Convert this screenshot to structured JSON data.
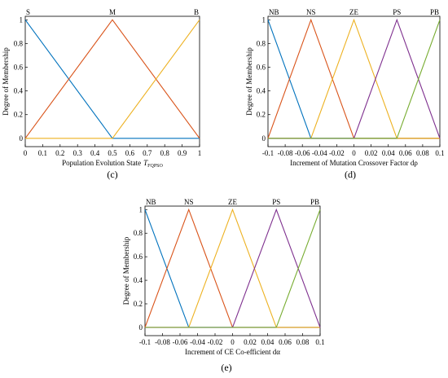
{
  "chart_data": [
    {
      "type": "line",
      "panel_label": "(c)",
      "xlabel": "Population Evolution State",
      "xlabel_var": "T",
      "xlabel_sub": "FQPSO",
      "ylabel": "Degree of Membership",
      "xlim": [
        0,
        1
      ],
      "ylim": [
        -0.07,
        1.03
      ],
      "x_ticks": [
        "0",
        "0.1",
        "0.2",
        "0.3",
        "0.4",
        "0.5",
        "0.6",
        "0.7",
        "0.8",
        "0.9",
        "1"
      ],
      "x_tick_values": [
        0,
        0.1,
        0.2,
        0.3,
        0.4,
        0.5,
        0.6,
        0.7,
        0.8,
        0.9,
        1
      ],
      "y_ticks": [
        "0",
        "0.2",
        "0.4",
        "0.6",
        "0.8",
        "1"
      ],
      "y_tick_values": [
        0,
        0.2,
        0.4,
        0.6,
        0.8,
        1
      ],
      "series": [
        {
          "name": "S",
          "color": "#0072BD",
          "x": [
            0,
            0.5,
            1
          ],
          "y": [
            1,
            0,
            0
          ]
        },
        {
          "name": "M",
          "color": "#D95319",
          "x": [
            0,
            0.5,
            1
          ],
          "y": [
            0,
            1,
            0
          ]
        },
        {
          "name": "B",
          "color": "#EDB120",
          "x": [
            0,
            0.5,
            1
          ],
          "y": [
            0,
            0,
            1
          ]
        }
      ]
    },
    {
      "type": "line",
      "panel_label": "(d)",
      "xlabel": "Increment of Mutation Crossover Factor dρ",
      "ylabel": "Degree of Membership",
      "xlim": [
        -0.1,
        0.1
      ],
      "ylim": [
        -0.07,
        1.03
      ],
      "x_ticks": [
        "-0.1",
        "-0.08",
        "-0.06",
        "-0.04",
        "-0.02",
        "0",
        "0.02",
        "0.04",
        "0.06",
        "0.08",
        "0.1"
      ],
      "x_tick_values": [
        -0.1,
        -0.08,
        -0.06,
        -0.04,
        -0.02,
        0,
        0.02,
        0.04,
        0.06,
        0.08,
        0.1
      ],
      "y_ticks": [
        "0",
        "0.2",
        "0.4",
        "0.6",
        "0.8",
        "1"
      ],
      "y_tick_values": [
        0,
        0.2,
        0.4,
        0.6,
        0.8,
        1
      ],
      "series": [
        {
          "name": "NB",
          "color": "#0072BD",
          "x": [
            -0.1,
            -0.05,
            0.1
          ],
          "y": [
            1,
            0,
            0
          ]
        },
        {
          "name": "NS",
          "color": "#D95319",
          "x": [
            -0.1,
            -0.05,
            0,
            0.1
          ],
          "y": [
            0,
            1,
            0,
            0
          ]
        },
        {
          "name": "ZE",
          "color": "#EDB120",
          "x": [
            -0.1,
            -0.05,
            0,
            0.05,
            0.1
          ],
          "y": [
            0,
            0,
            1,
            0,
            0
          ]
        },
        {
          "name": "PS",
          "color": "#7E2F8E",
          "x": [
            -0.1,
            0,
            0.05,
            0.1
          ],
          "y": [
            0,
            0,
            1,
            0
          ]
        },
        {
          "name": "PB",
          "color": "#77AC30",
          "x": [
            -0.1,
            0.05,
            0.1
          ],
          "y": [
            0,
            0,
            1
          ]
        }
      ]
    },
    {
      "type": "line",
      "panel_label": "(e)",
      "xlabel": "Increment of CE Co-efficient dα",
      "ylabel": "Degree of Membership",
      "xlim": [
        -0.1,
        0.1
      ],
      "ylim": [
        -0.07,
        1.03
      ],
      "x_ticks": [
        "-0.1",
        "-0.08",
        "-0.06",
        "-0.04",
        "-0.02",
        "0",
        "0.02",
        "0.04",
        "0.06",
        "0.08",
        "0.1"
      ],
      "x_tick_values": [
        -0.1,
        -0.08,
        -0.06,
        -0.04,
        -0.02,
        0,
        0.02,
        0.04,
        0.06,
        0.08,
        0.1
      ],
      "y_ticks": [
        "0",
        "0.2",
        "0.4",
        "0.6",
        "0.8",
        "1"
      ],
      "y_tick_values": [
        0,
        0.2,
        0.4,
        0.6,
        0.8,
        1
      ],
      "series": [
        {
          "name": "NB",
          "color": "#0072BD",
          "x": [
            -0.1,
            -0.05,
            0.1
          ],
          "y": [
            1,
            0,
            0
          ]
        },
        {
          "name": "NS",
          "color": "#D95319",
          "x": [
            -0.1,
            -0.05,
            0,
            0.1
          ],
          "y": [
            0,
            1,
            0,
            0
          ]
        },
        {
          "name": "ZE",
          "color": "#EDB120",
          "x": [
            -0.1,
            -0.05,
            0,
            0.05,
            0.1
          ],
          "y": [
            0,
            0,
            1,
            0,
            0
          ]
        },
        {
          "name": "PS",
          "color": "#7E2F8E",
          "x": [
            -0.1,
            0,
            0.05,
            0.1
          ],
          "y": [
            0,
            0,
            1,
            0
          ]
        },
        {
          "name": "PB",
          "color": "#77AC30",
          "x": [
            -0.1,
            0.05,
            0.1
          ],
          "y": [
            0,
            0,
            1
          ]
        }
      ]
    }
  ]
}
